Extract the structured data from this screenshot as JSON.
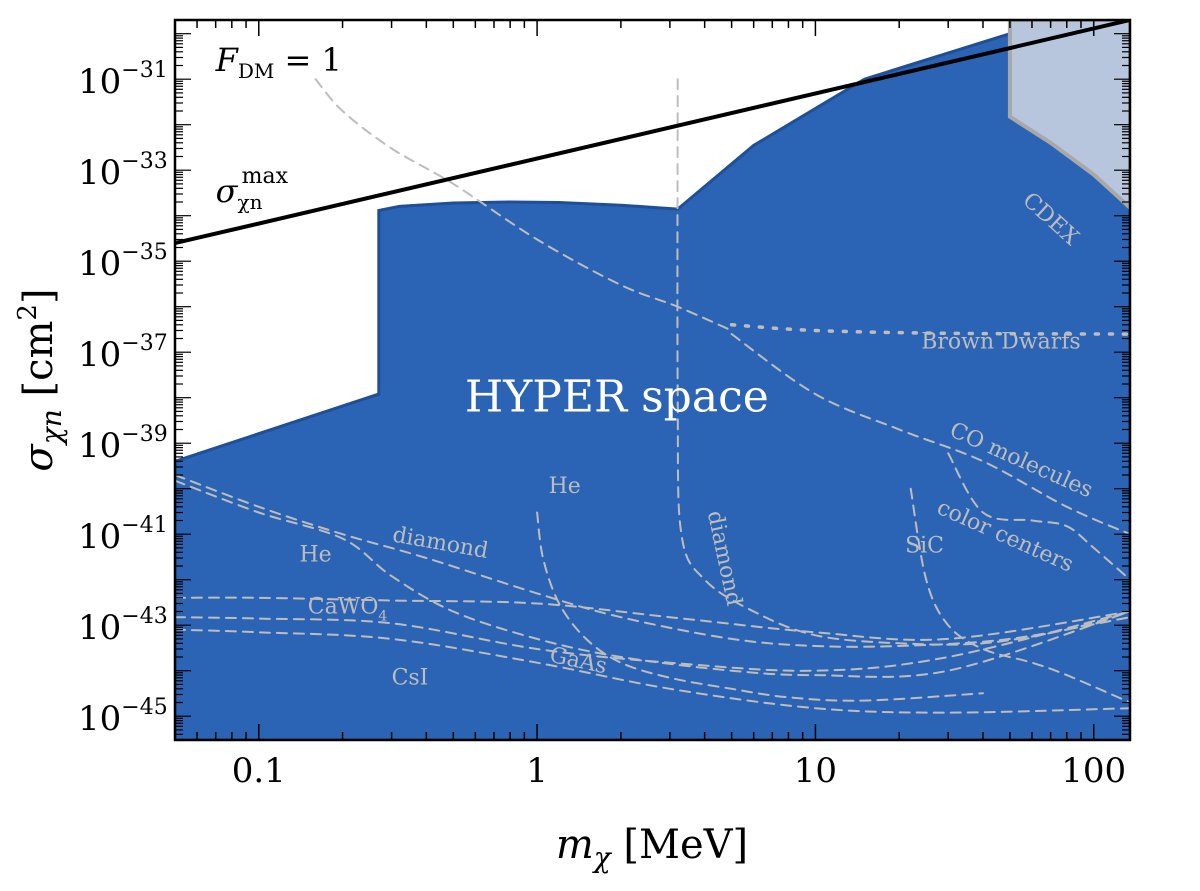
{
  "chart_data": {
    "type": "area",
    "xscale": "log",
    "yscale": "log",
    "xlim": [
      0.05,
      135
    ],
    "ylim": [
      3e-46,
      2e-30
    ],
    "grid": false,
    "x_ticks": [
      "0.1",
      "1",
      "10",
      "100"
    ],
    "y_ticks": [
      {
        "base": "10",
        "exp": "−31"
      },
      {
        "base": "10",
        "exp": "−33"
      },
      {
        "base": "10",
        "exp": "−35"
      },
      {
        "base": "10",
        "exp": "−37"
      },
      {
        "base": "10",
        "exp": "−39"
      },
      {
        "base": "10",
        "exp": "−41"
      },
      {
        "base": "10",
        "exp": "−43"
      },
      {
        "base": "10",
        "exp": "−45"
      }
    ],
    "xlabel": {
      "symbol": "m",
      "sub": "χ",
      "unit": " [MeV]"
    },
    "ylabel": {
      "symbol": "σ",
      "sub": "χn",
      "unit": " [cm",
      "unit_sup": "2",
      "unit_end": "]"
    },
    "colors": {
      "hyper_fill": "#2b64b5",
      "hyper_edge": "#1e4f98",
      "cdex_fill": "#b7c6dc",
      "cdex_edge": "#a8a8a8",
      "projection": "#bdbdbd",
      "max_line": "#000000"
    },
    "regions": [
      {
        "name": "HYPER space",
        "label": "HYPER space",
        "boundary_x": [
          0.05,
          0.27,
          0.27,
          0.32,
          0.5,
          0.8,
          1.2,
          2.0,
          3.2,
          6.0,
          15,
          50,
          135
        ],
        "boundary_y": [
          4e-40,
          1.2e-38,
          1.3e-34,
          1.6e-34,
          1.9e-34,
          2e-34,
          1.95e-34,
          1.7e-34,
          1.4e-34,
          3.5e-33,
          1e-31,
          1e-30,
          2e-30
        ]
      },
      {
        "name": "CDEX",
        "label": "CDEX",
        "boundary_x": [
          50,
          50,
          70,
          100,
          135
        ],
        "boundary_y": [
          2e-30,
          1.5e-32,
          4e-33,
          8e-34,
          1.5e-34
        ]
      }
    ],
    "lines": [
      {
        "name": "sigma max",
        "style": "solid",
        "x": [
          0.05,
          135
        ],
        "y": [
          2.5e-35,
          2e-30
        ]
      }
    ],
    "projections": [
      {
        "name": "F_DM = 1 / Brown Dwarfs",
        "style": "dashed",
        "x": [
          0.16,
          0.2,
          0.3,
          0.5,
          1,
          2,
          3.2,
          5
        ],
        "y": [
          1e-31,
          2e-32,
          3e-33,
          5e-34,
          3e-35,
          3e-36,
          1e-36,
          3e-37
        ]
      },
      {
        "name": "Brown Dwarfs",
        "style": "dotted",
        "x": [
          5,
          10,
          30,
          135
        ],
        "y": [
          4e-37,
          3e-37,
          2.6e-37,
          2.5e-37
        ]
      },
      {
        "name": "CO molecules",
        "style": "dashed",
        "x": [
          5,
          10,
          20,
          40,
          80,
          135
        ],
        "y": [
          2.5e-37,
          1.2e-38,
          2e-39,
          4e-40,
          4e-41,
          1e-41
        ]
      },
      {
        "name": "color centers",
        "style": "dashed",
        "x": [
          30,
          40,
          60,
          80,
          100,
          135
        ],
        "y": [
          6e-40,
          3e-41,
          2e-41,
          1.5e-41,
          5e-42,
          1e-42
        ]
      },
      {
        "name": "SiC",
        "style": "dashed",
        "x": [
          22,
          25,
          30,
          40,
          60,
          80,
          135
        ],
        "y": [
          1e-40,
          1e-42,
          1e-43,
          3e-44,
          1.5e-44,
          8e-45,
          2e-45
        ]
      },
      {
        "name": "He (high mass)",
        "style": "dashed",
        "x": [
          1,
          1.05,
          1.2,
          1.5,
          2,
          3,
          5,
          8,
          15,
          40
        ],
        "y": [
          3e-41,
          3e-42,
          3e-43,
          5e-44,
          1.5e-44,
          7e-45,
          4e-45,
          2.6e-45,
          2.2e-45,
          3.2e-45
        ]
      },
      {
        "name": "diamond (vertical)",
        "style": "dashed",
        "x": [
          3.2,
          3.2,
          3.3,
          4,
          6,
          10,
          20,
          40,
          80,
          135
        ],
        "y": [
          1e-31,
          1e-38,
          1e-41,
          1e-42,
          2e-43,
          6e-44,
          4e-44,
          4e-44,
          8e-44,
          2e-43
        ]
      },
      {
        "name": "diamond (low mass)",
        "style": "dashed",
        "x": [
          0.05,
          0.1,
          0.2,
          0.4,
          1,
          2,
          5,
          10,
          20,
          50,
          135
        ],
        "y": [
          2e-40,
          4e-41,
          1e-41,
          3e-42,
          5e-43,
          1.5e-43,
          5e-44,
          3.5e-44,
          3.5e-44,
          5e-44,
          1.5e-43
        ]
      },
      {
        "name": "He (low mass)",
        "style": "dashed",
        "x": [
          0.05,
          0.1,
          0.2,
          0.3,
          0.5,
          1,
          2,
          5,
          10,
          30,
          135
        ],
        "y": [
          1.5e-40,
          3e-41,
          8e-42,
          1.2e-42,
          2e-43,
          5e-44,
          2e-44,
          1e-44,
          8e-45,
          1e-44,
          2e-43
        ]
      },
      {
        "name": "CaWO4",
        "style": "dashed",
        "x": [
          0.05,
          0.1,
          0.3,
          1,
          3,
          10,
          30,
          135
        ],
        "y": [
          4e-43,
          4e-43,
          3.5e-43,
          3e-43,
          1.5e-43,
          7e-44,
          5e-44,
          2e-43
        ]
      },
      {
        "name": "GaAs",
        "style": "dashed",
        "x": [
          0.05,
          0.1,
          0.3,
          1,
          3,
          10,
          30,
          135
        ],
        "y": [
          1.5e-43,
          1.4e-43,
          1.1e-43,
          3e-44,
          1.5e-44,
          1e-44,
          2e-44,
          2e-43
        ]
      },
      {
        "name": "CsI",
        "style": "dashed",
        "x": [
          0.05,
          0.1,
          0.3,
          1,
          3,
          10,
          30,
          135
        ],
        "y": [
          8e-44,
          7e-44,
          5e-44,
          1.5e-44,
          4e-45,
          1.5e-45,
          1.2e-45,
          1.5e-45
        ]
      }
    ],
    "annotations": [
      {
        "name": "fdm-label",
        "text_base": "F",
        "text_sub": "DM",
        "text_rest": " = 1",
        "x": 0.07,
        "y": 1.5e-31
      },
      {
        "name": "sigma-max-label",
        "text_base": "σ",
        "text_sub": "χn",
        "text_sup": "max",
        "x": 0.07,
        "y": 2e-34
      },
      {
        "name": "brown-dwarfs-label",
        "text": "Brown Dwarfs",
        "x": 24,
        "y": 1.2e-37,
        "rotate": 0
      },
      {
        "name": "co-molecules-label",
        "text": "CO molecules",
        "x": 30,
        "y": 1.5e-39,
        "rotate": 24
      },
      {
        "name": "color-centers-label",
        "text": "color centers",
        "x": 27,
        "y": 3e-41,
        "rotate": 24
      },
      {
        "name": "sic-label",
        "text": "SiC",
        "x": 21,
        "y": 4e-42,
        "rotate": 0
      },
      {
        "name": "cdex-label",
        "text": "CDEX",
        "x": 55,
        "y": 2e-34,
        "rotate": 42
      },
      {
        "name": "he-high-label",
        "text": "He",
        "x": 1.1,
        "y": 8e-41,
        "rotate": 0
      },
      {
        "name": "diamond-vertical-label",
        "text": "diamond",
        "x": 4.1,
        "y": 3e-41,
        "rotate": 78
      },
      {
        "name": "diamond-low-label",
        "text": "diamond",
        "x": 0.3,
        "y": 7e-42,
        "rotate": 10
      },
      {
        "name": "he-low-label",
        "text": "He",
        "x": 0.14,
        "y": 2.5e-42,
        "rotate": 0
      },
      {
        "name": "cawo4-label",
        "text_base": "CaWO",
        "text_sub": "4",
        "x": 0.15,
        "y": 1.8e-43,
        "rotate": 0
      },
      {
        "name": "gaas-label",
        "text": "GaAs",
        "x": 1.1,
        "y": 1.6e-44,
        "rotate": 12
      },
      {
        "name": "csi-label",
        "text": "CsI",
        "x": 0.3,
        "y": 5e-45,
        "rotate": 0
      },
      {
        "name": "hyper-space-label",
        "text": "HYPER space",
        "x": 0.55,
        "y": 5e-39,
        "rotate": 0
      }
    ]
  }
}
